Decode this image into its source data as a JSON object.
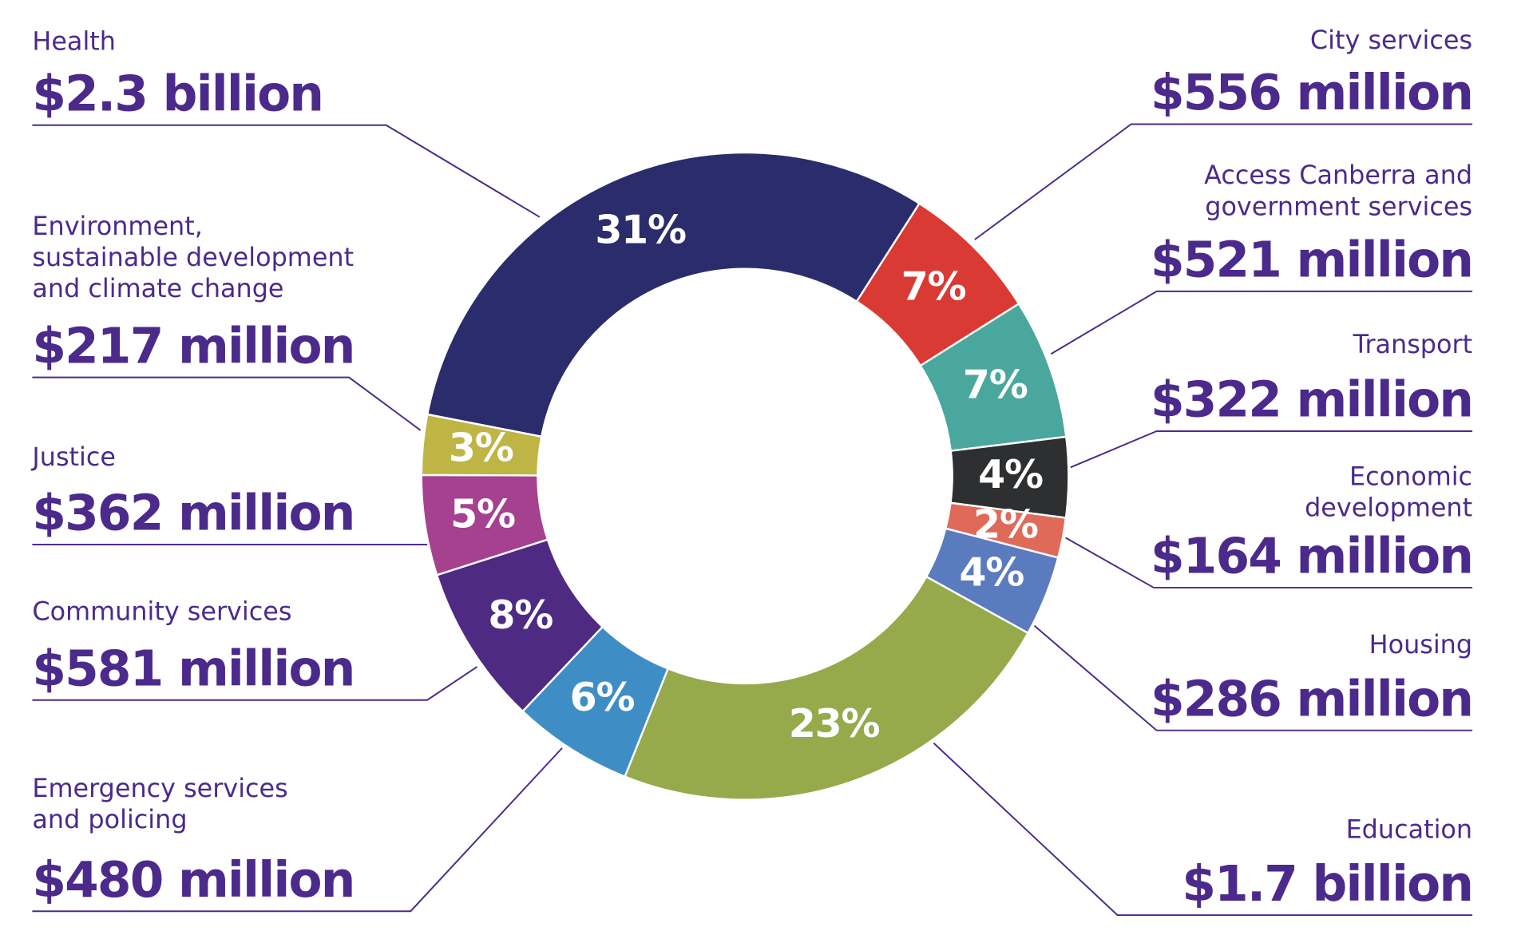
{
  "chart_data": {
    "type": "donut",
    "categories": [
      "Health",
      "City services",
      "Access Canberra and\ngovernment services",
      "Transport",
      "Economic\ndevelopment",
      "Housing",
      "Education",
      "Emergency services\nand policing",
      "Community services",
      "Justice",
      "Environment,\nsustainable development\nand climate change"
    ],
    "values": [
      31,
      7,
      7,
      4,
      2,
      4,
      23,
      6,
      8,
      5,
      3
    ],
    "value_labels": [
      "31%",
      "7%",
      "7%",
      "4%",
      "2%",
      "4%",
      "23%",
      "6%",
      "8%",
      "5%",
      "3%"
    ],
    "amount_labels": [
      "$2.3 billion",
      "$556 million",
      "$521 million",
      "$322 million",
      "$164 million",
      "$286 million",
      "$1.7 billion",
      "$480 million",
      "$581 million",
      "$362 million",
      "$217 million"
    ],
    "colors": [
      "#2b2c6b",
      "#d93a33",
      "#4aa79d",
      "#2e2f31",
      "#e06a5a",
      "#5b7bbf",
      "#96a94b",
      "#3e8ec5",
      "#4e2a82",
      "#a5418e",
      "#bfb545"
    ]
  }
}
